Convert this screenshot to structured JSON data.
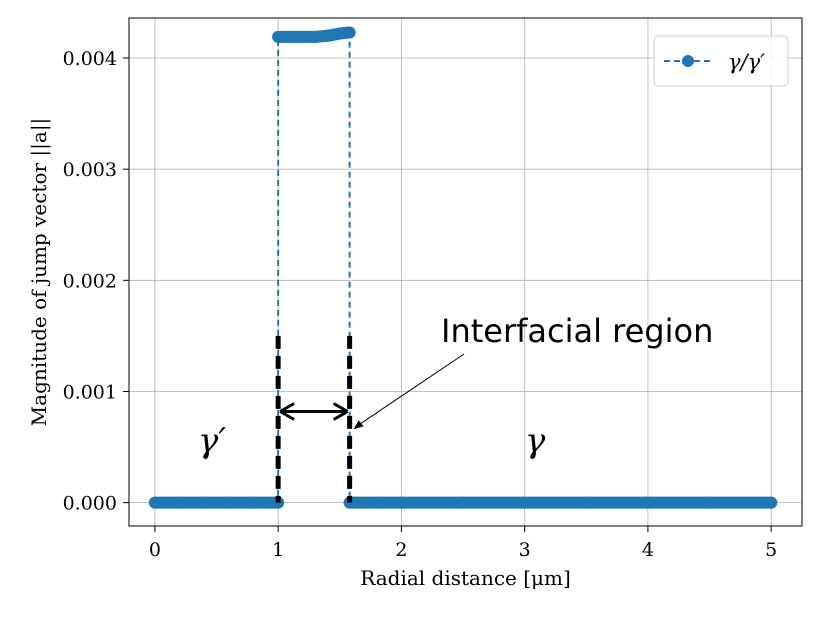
{
  "chart_data": {
    "type": "line",
    "xlabel": "Radial distance [μm]",
    "ylabel": "Magnitude of jump vector ||a||",
    "xlim": [
      -0.21,
      5.25
    ],
    "ylim": [
      -0.00021,
      0.00436
    ],
    "x_ticks": [
      0,
      1,
      2,
      3,
      4,
      5
    ],
    "y_ticks": [
      0.0,
      0.001,
      0.002,
      0.003,
      0.004
    ],
    "x_tick_labels": [
      "0",
      "1",
      "2",
      "3",
      "4",
      "5"
    ],
    "y_tick_labels": [
      "0.000",
      "0.001",
      "0.002",
      "0.003",
      "0.004"
    ],
    "grid": true,
    "legend_position": "top-right",
    "series": [
      {
        "name": "γ/γ′",
        "color": "#1f77b4",
        "linestyle": "dashed",
        "marker": "circle",
        "x": [
          0,
          0.2,
          0.4,
          0.6,
          0.8,
          1.0,
          1.0,
          1.1,
          1.2,
          1.3,
          1.4,
          1.5,
          1.58,
          1.58,
          1.8,
          2.0,
          2.5,
          3.0,
          3.5,
          4.0,
          4.5,
          5.0
        ],
        "y": [
          0,
          0,
          0,
          0,
          0,
          0,
          0.00419,
          0.00419,
          0.00419,
          0.00419,
          0.0042,
          0.00422,
          0.00423,
          0,
          0,
          0,
          0,
          0,
          0,
          0,
          0,
          0
        ]
      }
    ],
    "annotations": {
      "phase_left": "γ′",
      "phase_right": "γ",
      "interface_label": "Interfacial region",
      "interface_bounds_x": [
        1.0,
        1.58
      ],
      "interface_marker_top_y": 0.0015,
      "arrow_y": 0.00082
    }
  }
}
